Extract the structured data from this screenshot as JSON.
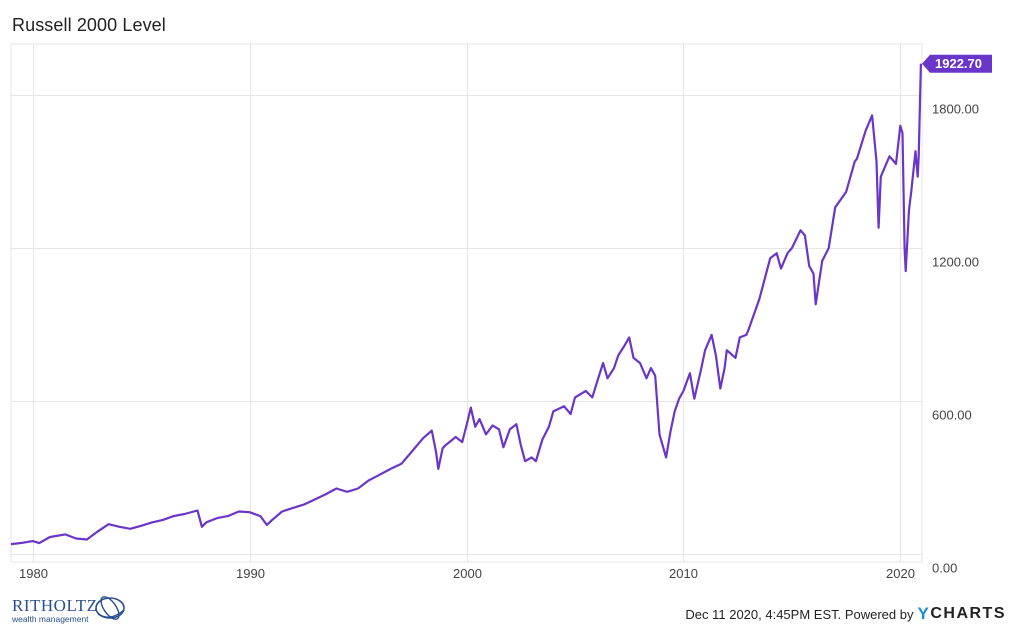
{
  "chart_data": {
    "type": "line",
    "title": "Russell 2000 Level",
    "xlabel": "",
    "ylabel": "",
    "x_ticks": [
      "1980",
      "1990",
      "2000",
      "2010",
      "2020"
    ],
    "x_tick_values": [
      1980,
      1990,
      2000,
      2010,
      2020
    ],
    "y_ticks": [
      "0.00",
      "600.00",
      "1200.00",
      "1800.00"
    ],
    "y_tick_values": [
      0,
      600,
      1200,
      1800
    ],
    "xlim": [
      1979.0,
      2021.0
    ],
    "ylim": [
      -30,
      2000
    ],
    "grid": true,
    "line_color": "#6a35c9",
    "series": [
      {
        "values": [
          [
            1979.0,
            40
          ],
          [
            1979.5,
            45
          ],
          [
            1980.0,
            52
          ],
          [
            1980.3,
            44
          ],
          [
            1980.8,
            68
          ],
          [
            1981.5,
            78
          ],
          [
            1982.0,
            62
          ],
          [
            1982.5,
            58
          ],
          [
            1983.0,
            90
          ],
          [
            1983.5,
            118
          ],
          [
            1984.0,
            108
          ],
          [
            1984.5,
            100
          ],
          [
            1985.0,
            112
          ],
          [
            1985.5,
            125
          ],
          [
            1986.0,
            135
          ],
          [
            1986.5,
            150
          ],
          [
            1987.0,
            158
          ],
          [
            1987.6,
            172
          ],
          [
            1987.8,
            108
          ],
          [
            1988.0,
            125
          ],
          [
            1988.5,
            142
          ],
          [
            1989.0,
            150
          ],
          [
            1989.5,
            168
          ],
          [
            1990.0,
            165
          ],
          [
            1990.5,
            150
          ],
          [
            1990.8,
            115
          ],
          [
            1991.0,
            132
          ],
          [
            1991.5,
            168
          ],
          [
            1992.0,
            182
          ],
          [
            1992.5,
            195
          ],
          [
            1993.0,
            215
          ],
          [
            1993.5,
            235
          ],
          [
            1994.0,
            258
          ],
          [
            1994.5,
            245
          ],
          [
            1995.0,
            258
          ],
          [
            1995.5,
            290
          ],
          [
            1996.0,
            312
          ],
          [
            1996.5,
            335
          ],
          [
            1997.0,
            355
          ],
          [
            1997.5,
            405
          ],
          [
            1997.8,
            435
          ],
          [
            1998.0,
            455
          ],
          [
            1998.4,
            485
          ],
          [
            1998.6,
            400
          ],
          [
            1998.7,
            335
          ],
          [
            1998.9,
            415
          ],
          [
            1999.0,
            425
          ],
          [
            1999.5,
            460
          ],
          [
            1999.8,
            440
          ],
          [
            2000.0,
            505
          ],
          [
            2000.2,
            575
          ],
          [
            2000.4,
            500
          ],
          [
            2000.6,
            530
          ],
          [
            2000.9,
            470
          ],
          [
            2001.2,
            505
          ],
          [
            2001.5,
            490
          ],
          [
            2001.7,
            420
          ],
          [
            2002.0,
            490
          ],
          [
            2002.3,
            510
          ],
          [
            2002.5,
            430
          ],
          [
            2002.7,
            365
          ],
          [
            2003.0,
            380
          ],
          [
            2003.2,
            365
          ],
          [
            2003.5,
            450
          ],
          [
            2003.8,
            500
          ],
          [
            2004.0,
            560
          ],
          [
            2004.5,
            580
          ],
          [
            2004.8,
            550
          ],
          [
            2005.0,
            615
          ],
          [
            2005.5,
            640
          ],
          [
            2005.8,
            615
          ],
          [
            2006.0,
            670
          ],
          [
            2006.3,
            750
          ],
          [
            2006.5,
            690
          ],
          [
            2006.8,
            730
          ],
          [
            2007.0,
            780
          ],
          [
            2007.3,
            820
          ],
          [
            2007.5,
            850
          ],
          [
            2007.7,
            770
          ],
          [
            2008.0,
            750
          ],
          [
            2008.3,
            690
          ],
          [
            2008.5,
            730
          ],
          [
            2008.7,
            700
          ],
          [
            2008.9,
            470
          ],
          [
            2009.0,
            440
          ],
          [
            2009.2,
            380
          ],
          [
            2009.4,
            480
          ],
          [
            2009.6,
            560
          ],
          [
            2009.8,
            610
          ],
          [
            2010.0,
            640
          ],
          [
            2010.3,
            710
          ],
          [
            2010.5,
            610
          ],
          [
            2010.8,
            720
          ],
          [
            2011.0,
            800
          ],
          [
            2011.3,
            860
          ],
          [
            2011.5,
            780
          ],
          [
            2011.7,
            650
          ],
          [
            2011.9,
            730
          ],
          [
            2012.0,
            800
          ],
          [
            2012.4,
            770
          ],
          [
            2012.6,
            850
          ],
          [
            2012.9,
            860
          ],
          [
            2013.0,
            880
          ],
          [
            2013.5,
            1000
          ],
          [
            2014.0,
            1160
          ],
          [
            2014.3,
            1180
          ],
          [
            2014.5,
            1120
          ],
          [
            2014.8,
            1180
          ],
          [
            2015.0,
            1200
          ],
          [
            2015.4,
            1270
          ],
          [
            2015.6,
            1250
          ],
          [
            2015.8,
            1130
          ],
          [
            2016.0,
            1100
          ],
          [
            2016.1,
            980
          ],
          [
            2016.4,
            1150
          ],
          [
            2016.7,
            1200
          ],
          [
            2017.0,
            1360
          ],
          [
            2017.5,
            1420
          ],
          [
            2017.9,
            1540
          ],
          [
            2018.0,
            1550
          ],
          [
            2018.4,
            1660
          ],
          [
            2018.7,
            1720
          ],
          [
            2018.9,
            1540
          ],
          [
            2019.0,
            1280
          ],
          [
            2019.1,
            1480
          ],
          [
            2019.5,
            1560
          ],
          [
            2019.8,
            1530
          ],
          [
            2020.0,
            1680
          ],
          [
            2020.1,
            1650
          ],
          [
            2020.2,
            1200
          ],
          [
            2020.25,
            1110
          ],
          [
            2020.4,
            1350
          ],
          [
            2020.5,
            1420
          ],
          [
            2020.7,
            1580
          ],
          [
            2020.8,
            1480
          ],
          [
            2020.85,
            1560
          ],
          [
            2020.95,
            1922.7
          ]
        ]
      }
    ],
    "last_value_label": "1922.70"
  },
  "footer": {
    "timestamp": "Dec 11 2020, 4:45PM EST. Powered by",
    "brand_y": "Y",
    "brand_rest": "CHARTS"
  },
  "logo": {
    "name": "RITHOLTZ",
    "subtitle": "wealth management"
  }
}
